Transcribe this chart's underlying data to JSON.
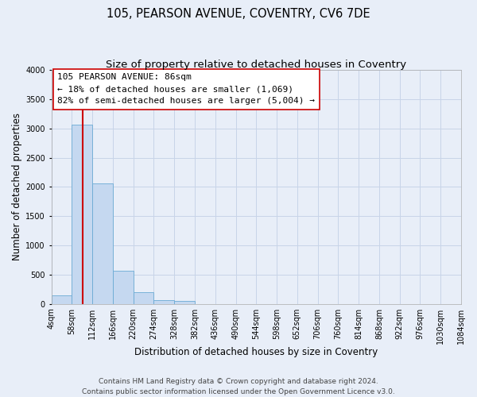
{
  "title": "105, PEARSON AVENUE, COVENTRY, CV6 7DE",
  "subtitle": "Size of property relative to detached houses in Coventry",
  "xlabel": "Distribution of detached houses by size in Coventry",
  "ylabel": "Number of detached properties",
  "bin_edges": [
    4,
    58,
    112,
    166,
    220,
    274,
    328,
    382,
    436,
    490,
    544,
    598,
    652,
    706,
    760,
    814,
    868,
    922,
    976,
    1030,
    1084
  ],
  "bar_heights": [
    150,
    3060,
    2060,
    560,
    200,
    70,
    50,
    0,
    0,
    0,
    0,
    0,
    0,
    0,
    0,
    0,
    0,
    0,
    0,
    0
  ],
  "bar_color": "#c5d8f0",
  "bar_edge_color": "#6aaad4",
  "vline_x": 86,
  "vline_color": "#cc0000",
  "ylim": [
    0,
    4000
  ],
  "yticks": [
    0,
    500,
    1000,
    1500,
    2000,
    2500,
    3000,
    3500,
    4000
  ],
  "annotation_line1": "105 PEARSON AVENUE: 86sqm",
  "annotation_line2": "← 18% of detached houses are smaller (1,069)",
  "annotation_line3": "82% of semi-detached houses are larger (5,004) →",
  "footer_line1": "Contains HM Land Registry data © Crown copyright and database right 2024.",
  "footer_line2": "Contains public sector information licensed under the Open Government Licence v3.0.",
  "background_color": "#e8eef8",
  "grid_color": "#c8d4e8",
  "title_fontsize": 10.5,
  "subtitle_fontsize": 9.5,
  "axis_label_fontsize": 8.5,
  "tick_fontsize": 7,
  "annotation_fontsize": 8,
  "footer_fontsize": 6.5
}
